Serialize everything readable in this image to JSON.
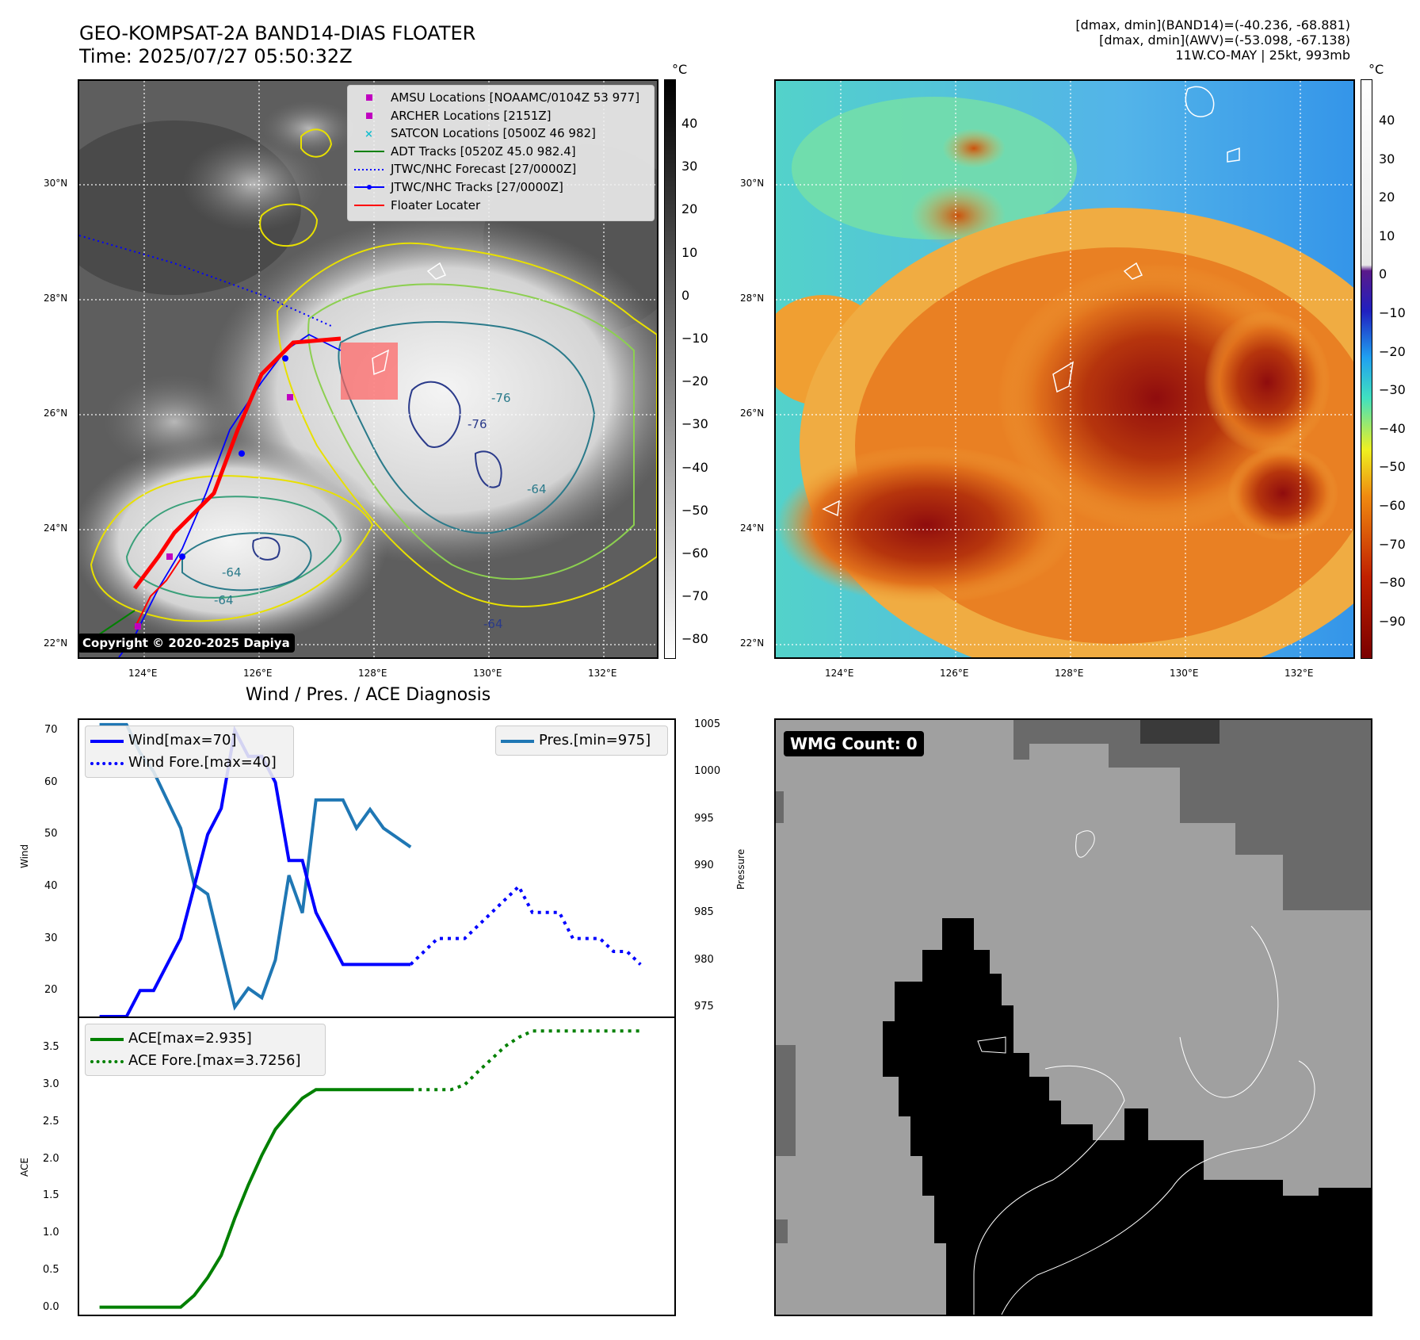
{
  "header": {
    "title_line1": "GEO-KOMPSAT-2A BAND14-DIAS FLOATER",
    "title_line2": "Time: 2025/07/27 05:50:32Z",
    "meta_line1": "[dmax, dmin](BAND14)=(-40.236, -68.881)",
    "meta_line2": "[dmax, dmin](AWV)=(-53.098, -67.138)",
    "meta_line3": "11W.CO-MAY | 25kt, 993mb"
  },
  "ir_panel": {
    "legend": [
      {
        "label": "AMSU Locations [NOAAMC/0104Z 53 977]",
        "color": "#c000c0",
        "marker": "square"
      },
      {
        "label": "ARCHER Locations [2151Z]",
        "color": "#c000c0",
        "marker": "square"
      },
      {
        "label": "SATCON Locations [0500Z 46 982]",
        "color": "#17becf",
        "marker": "x"
      },
      {
        "label": "ADT Tracks [0520Z 45.0 982.4]",
        "color": "#008000",
        "marker": "line"
      },
      {
        "label": "JTWC/NHC Forecast [27/0000Z]",
        "color": "#0000ff",
        "marker": "dotted"
      },
      {
        "label": "JTWC/NHC Tracks [27/0000Z]",
        "color": "#0000ff",
        "marker": "line-dot"
      },
      {
        "label": "Floater Locater",
        "color": "#ff0000",
        "marker": "line"
      }
    ],
    "copyright": "Copyright © 2020-2025 Dapiya",
    "contour_labels": [
      "-76",
      "-64",
      "-64",
      "-76",
      "-64",
      "-64"
    ],
    "colorbar_unit": "°C",
    "colorbar_ticks": [
      "40",
      "30",
      "20",
      "10",
      "0",
      "−10",
      "−20",
      "−30",
      "−40",
      "−50",
      "−60",
      "−70",
      "−80"
    ]
  },
  "wv_panel": {
    "colorbar_unit": "°C",
    "colorbar_ticks": [
      "40",
      "30",
      "20",
      "10",
      "0",
      "−10",
      "−20",
      "−30",
      "−40",
      "−50",
      "−60",
      "−70",
      "−80",
      "−90"
    ]
  },
  "map_axes": {
    "lat_labels": [
      "30°N",
      "28°N",
      "26°N",
      "24°N",
      "22°N"
    ],
    "lon_labels": [
      "124°E",
      "126°E",
      "128°E",
      "130°E",
      "132°E"
    ]
  },
  "diagnosis": {
    "title": "Wind / Pres. / ACE Diagnosis",
    "wind_ylabel": "Wind",
    "pres_ylabel": "Pressure",
    "ace_ylabel": "ACE",
    "wind_legend": [
      "Wind[max=70]",
      "Wind Fore.[max=40]"
    ],
    "pres_legend": "Pres.[min=975]",
    "ace_legend": [
      "ACE[max=2.935]",
      "ACE Fore.[max=3.7256]"
    ],
    "wind_ticks": [
      "70",
      "60",
      "50",
      "40",
      "30",
      "20"
    ],
    "pres_ticks": [
      "1005",
      "1000",
      "995",
      "990",
      "985",
      "980",
      "975"
    ],
    "ace_ticks": [
      "3.5",
      "3.0",
      "2.5",
      "2.0",
      "1.5",
      "1.0",
      "0.5",
      "0.0"
    ]
  },
  "wmg_panel": {
    "badge": "WMG Count: 0"
  },
  "colors": {
    "wind": "#0000ff",
    "pressure": "#1f77b4",
    "ace": "#008000"
  },
  "chart_data": [
    {
      "type": "line",
      "title": "Wind / Pres. / ACE Diagnosis",
      "ylabel": "Wind",
      "ylim": [
        15,
        72
      ],
      "series": [
        {
          "name": "Wind[max=70]",
          "x": [
            0,
            1,
            2,
            3,
            4,
            5,
            6,
            7,
            8,
            9,
            10,
            11,
            12,
            13,
            14,
            15,
            16,
            17,
            18,
            19,
            20,
            21,
            22,
            23
          ],
          "values": [
            15,
            15,
            15,
            20,
            20,
            25,
            30,
            40,
            50,
            55,
            70,
            65,
            65,
            60,
            45,
            45,
            35,
            30,
            25,
            25,
            25,
            25,
            25,
            25
          ]
        },
        {
          "name": "Wind Fore.[max=40]",
          "x": [
            23,
            24,
            25,
            26,
            27,
            28,
            29,
            30,
            31,
            32,
            33,
            34,
            35,
            36,
            37,
            38,
            39,
            40
          ],
          "values": [
            25,
            27.5,
            30,
            30,
            30,
            32.5,
            35,
            37.5,
            40,
            35,
            35,
            35,
            30,
            30,
            30,
            27.5,
            27.5,
            25
          ]
        }
      ]
    },
    {
      "type": "line",
      "ylabel": "Pressure",
      "ylim": [
        974,
        1005.5
      ],
      "series": [
        {
          "name": "Pres.[min=975]",
          "x": [
            0,
            1,
            2,
            3,
            4,
            5,
            6,
            7,
            8,
            9,
            10,
            11,
            12,
            13,
            14,
            15,
            16,
            17,
            18,
            19,
            20,
            21,
            22,
            23
          ],
          "values": [
            1005,
            1005,
            1005,
            1002,
            1000,
            997,
            994,
            988,
            987,
            981,
            975,
            977,
            976,
            980,
            989,
            985,
            997,
            997,
            997,
            994,
            996,
            994,
            993,
            992
          ]
        }
      ]
    },
    {
      "type": "line",
      "ylabel": "ACE",
      "ylim": [
        -0.1,
        3.9
      ],
      "series": [
        {
          "name": "ACE[max=2.935]",
          "x": [
            0,
            1,
            2,
            3,
            4,
            5,
            6,
            7,
            8,
            9,
            10,
            11,
            12,
            13,
            14,
            15,
            16,
            17,
            18,
            19,
            20,
            21,
            22,
            23
          ],
          "values": [
            0,
            0,
            0,
            0,
            0,
            0,
            0,
            0.16,
            0.4,
            0.7,
            1.2,
            1.65,
            2.05,
            2.4,
            2.62,
            2.82,
            2.935,
            2.935,
            2.935,
            2.935,
            2.935,
            2.935,
            2.935,
            2.935
          ]
        },
        {
          "name": "ACE Fore.[max=3.7256]",
          "x": [
            23,
            24,
            25,
            26,
            27,
            28,
            29,
            30,
            31,
            32,
            33,
            34,
            35,
            36,
            37,
            38,
            39,
            40
          ],
          "values": [
            2.935,
            2.935,
            2.935,
            2.935,
            3.0,
            3.18,
            3.35,
            3.52,
            3.64,
            3.7256,
            3.7256,
            3.7256,
            3.7256,
            3.7256,
            3.7256,
            3.7256,
            3.7256,
            3.7256
          ]
        }
      ]
    }
  ]
}
